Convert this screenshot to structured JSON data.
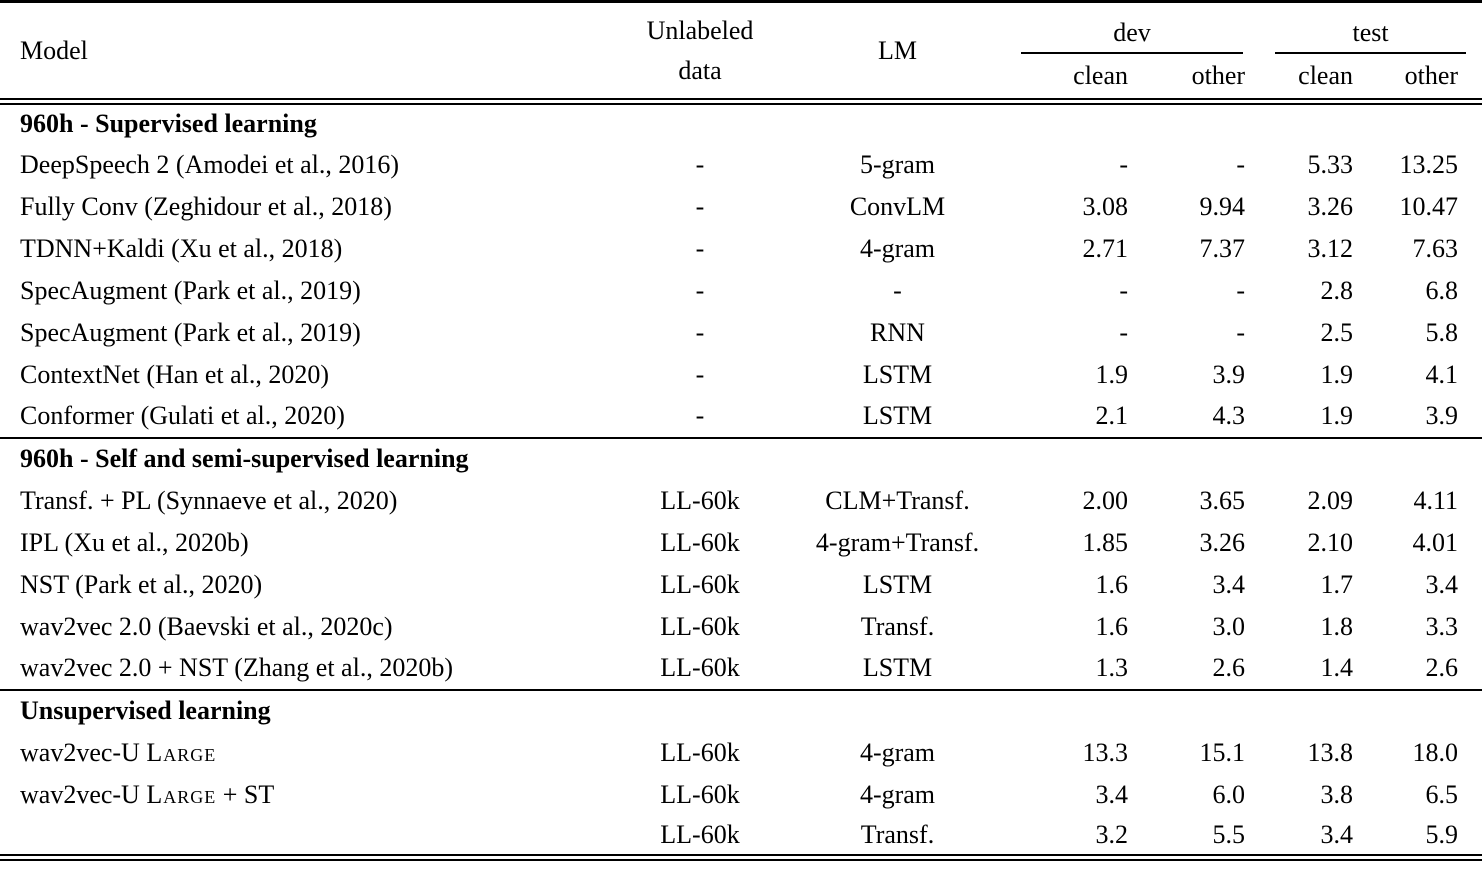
{
  "table": {
    "headers": {
      "model": "Model",
      "unlabeled_line1": "Unlabeled",
      "unlabeled_line2": "data",
      "lm": "LM",
      "dev": "dev",
      "test": "test",
      "clean": "clean",
      "other": "other"
    },
    "sections": [
      {
        "title": "960h - Supervised learning",
        "rows": [
          {
            "model": "DeepSpeech 2 (Amodei et al., 2016)",
            "unlabeled": "-",
            "lm": "5-gram",
            "dev_clean": "-",
            "dev_other": "-",
            "test_clean": "5.33",
            "test_other": "13.25"
          },
          {
            "model": "Fully Conv (Zeghidour et al., 2018)",
            "unlabeled": "-",
            "lm": "ConvLM",
            "dev_clean": "3.08",
            "dev_other": "9.94",
            "test_clean": "3.26",
            "test_other": "10.47"
          },
          {
            "model": "TDNN+Kaldi (Xu et al., 2018)",
            "unlabeled": "-",
            "lm": "4-gram",
            "dev_clean": "2.71",
            "dev_other": "7.37",
            "test_clean": "3.12",
            "test_other": "7.63"
          },
          {
            "model": "SpecAugment (Park et al., 2019)",
            "unlabeled": "-",
            "lm": "-",
            "dev_clean": "-",
            "dev_other": "-",
            "test_clean": "2.8",
            "test_other": "6.8"
          },
          {
            "model": "SpecAugment (Park et al., 2019)",
            "unlabeled": "-",
            "lm": "RNN",
            "dev_clean": "-",
            "dev_other": "-",
            "test_clean": "2.5",
            "test_other": "5.8"
          },
          {
            "model": "ContextNet (Han et al., 2020)",
            "unlabeled": "-",
            "lm": "LSTM",
            "dev_clean": "1.9",
            "dev_other": "3.9",
            "test_clean": "1.9",
            "test_other": "4.1"
          },
          {
            "model": "Conformer (Gulati et al., 2020)",
            "unlabeled": "-",
            "lm": "LSTM",
            "dev_clean": "2.1",
            "dev_other": "4.3",
            "test_clean": "1.9",
            "test_other": "3.9"
          }
        ]
      },
      {
        "title": "960h - Self and semi-supervised learning",
        "rows": [
          {
            "model": "Transf. + PL (Synnaeve et al., 2020)",
            "unlabeled": "LL-60k",
            "lm": "CLM+Transf.",
            "dev_clean": "2.00",
            "dev_other": "3.65",
            "test_clean": "2.09",
            "test_other": "4.11"
          },
          {
            "model": "IPL (Xu et al., 2020b)",
            "unlabeled": "LL-60k",
            "lm": "4-gram+Transf.",
            "dev_clean": "1.85",
            "dev_other": "3.26",
            "test_clean": "2.10",
            "test_other": "4.01"
          },
          {
            "model": "NST (Park et al., 2020)",
            "unlabeled": "LL-60k",
            "lm": "LSTM",
            "dev_clean": "1.6",
            "dev_other": "3.4",
            "test_clean": "1.7",
            "test_other": "3.4"
          },
          {
            "model": "wav2vec 2.0 (Baevski et al., 2020c)",
            "unlabeled": "LL-60k",
            "lm": "Transf.",
            "dev_clean": "1.6",
            "dev_other": "3.0",
            "test_clean": "1.8",
            "test_other": "3.3"
          },
          {
            "model": "wav2vec 2.0 + NST (Zhang et al., 2020b)",
            "unlabeled": "LL-60k",
            "lm": "LSTM",
            "dev_clean": "1.3",
            "dev_other": "2.6",
            "test_clean": "1.4",
            "test_other": "2.6"
          }
        ]
      },
      {
        "title": "Unsupervised learning",
        "rows": [
          {
            "model": [
              {
                "text": "wav2vec-U "
              },
              {
                "text": "Large",
                "smallcaps": true
              }
            ],
            "unlabeled": "LL-60k",
            "lm": "4-gram",
            "dev_clean": "13.3",
            "dev_other": "15.1",
            "test_clean": "13.8",
            "test_other": "18.0"
          },
          {
            "model": [
              {
                "text": "wav2vec-U "
              },
              {
                "text": "Large",
                "smallcaps": true
              },
              {
                "text": " + ST"
              }
            ],
            "unlabeled": "LL-60k",
            "lm": "4-gram",
            "dev_clean": "3.4",
            "dev_other": "6.0",
            "test_clean": "3.8",
            "test_other": "6.5"
          },
          {
            "model": "",
            "unlabeled": "LL-60k",
            "lm": "Transf.",
            "dev_clean": "3.2",
            "dev_other": "5.5",
            "test_clean": "3.4",
            "test_other": "5.9"
          }
        ]
      }
    ]
  }
}
